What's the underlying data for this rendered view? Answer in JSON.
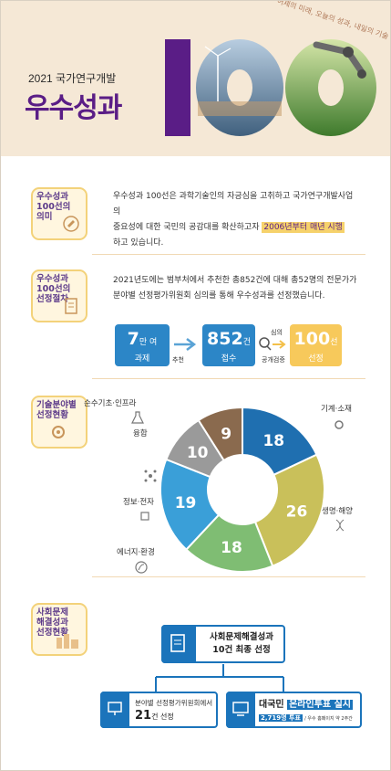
{
  "header": {
    "year_title": "2021 국가연구개발",
    "main_title": "우수성과",
    "hundred": "100",
    "tagline": "어제의 미래, 오늘의 성과, 내일의 기술"
  },
  "sections": {
    "meaning": {
      "badge": "우수성과\n100선의\n의미",
      "text_line1": "우수성과 100선은 과학기술인의 자긍심을 고취하고 국가연구개발사업의",
      "text_line2": "중요성에 대한 국민의 공감대를 확산하고자",
      "highlight": "2006년부터 매년 시행",
      "text_line3": "하고 있습니다."
    },
    "procedure": {
      "badge": "우수성과\n100선의\n선정절차",
      "text_line1": "2021년도에는 범부처에서 추천한 총852건에 대해 총52명의 전문가가",
      "text_line2": "분야별 선정평가위원회 심의를 통해 우수성과를 선정했습니다.",
      "step1_num": "7",
      "step1_unit": "만 여",
      "step1_label": "과제",
      "step1_arrow": "추천",
      "step2_num": "852",
      "step2_unit": "건",
      "step2_label": "접수",
      "step2_arrow": "공개검증",
      "step2_arrow_top": "심의",
      "step3_num": "100",
      "step3_unit": "선",
      "step3_label": "선정"
    },
    "fields": {
      "badge": "기술분야별\n선정현황"
    },
    "social": {
      "badge": "사회문제\n해결성과\n선정현황",
      "final_line1": "사회문제해결성과",
      "final_line2": "10건 최종 선정",
      "committee_line1": "분야별 선정평가위원회에서",
      "committee_num": "21",
      "committee_unit": "건 선정",
      "vote_prefix": "대국민",
      "vote_highlight": "온라인투표 실시",
      "vote_count": "2,719명 투표",
      "vote_note": "/ 우수 홈페이지 약 2주간"
    }
  },
  "chart_data": {
    "type": "pie",
    "title": "",
    "categories": [
      "기계·소재",
      "생명·해양",
      "에너지·환경",
      "정보·전자",
      "융합",
      "순수기초·인프라"
    ],
    "values": [
      18,
      26,
      18,
      19,
      10,
      9
    ],
    "colors": [
      "#1f6fb0",
      "#c9c05a",
      "#7fbd73",
      "#3a9fd8",
      "#9a9a9a",
      "#8a6a4e"
    ]
  }
}
